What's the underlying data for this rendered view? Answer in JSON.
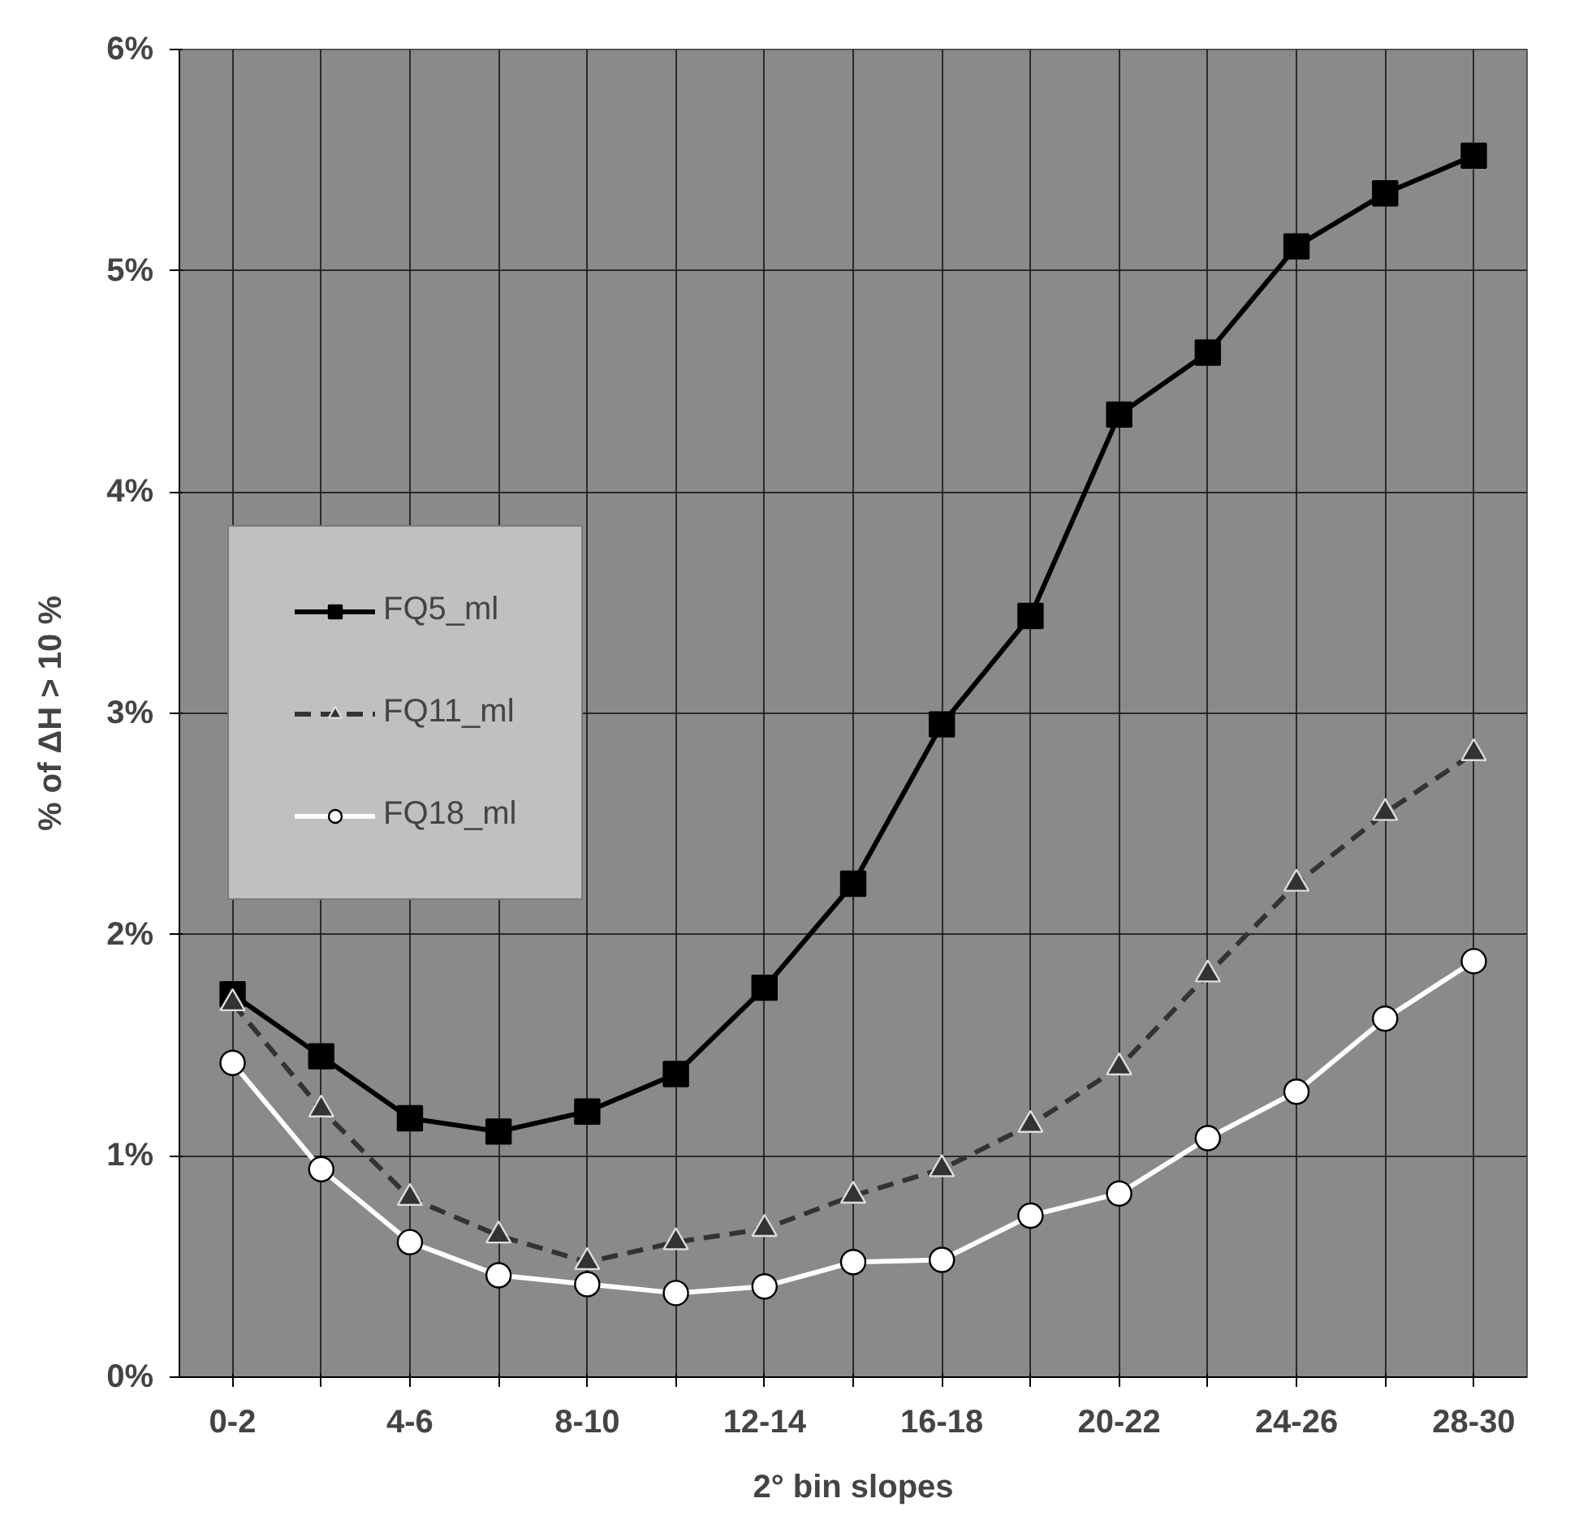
{
  "chart_data": {
    "type": "line",
    "xlabel": "2° bin slopes",
    "ylabel": "% of ΔH > 10 %",
    "categories": [
      "0-2",
      null,
      "4-6",
      null,
      "8-10",
      null,
      "12-14",
      null,
      "16-18",
      null,
      "20-22",
      null,
      "24-26",
      null,
      "28-30"
    ],
    "series": [
      {
        "name": "FQ5_ml",
        "color": "#000000",
        "marker": "square",
        "line_style": "solid",
        "values": [
          1.73,
          1.45,
          1.17,
          1.11,
          1.2,
          1.37,
          1.76,
          2.23,
          2.95,
          3.44,
          4.35,
          4.63,
          5.11,
          5.35,
          5.52
        ]
      },
      {
        "name": "FQ11_ml",
        "color": "#333333",
        "marker": "triangle",
        "line_style": "dashed",
        "values": [
          1.69,
          1.21,
          0.81,
          0.64,
          0.52,
          0.61,
          0.67,
          0.82,
          0.94,
          1.14,
          1.4,
          1.82,
          2.23,
          2.55,
          2.82
        ]
      },
      {
        "name": "FQ18_ml",
        "color": "#ffffff",
        "marker": "circle",
        "line_style": "solid",
        "values": [
          1.42,
          0.94,
          0.61,
          0.46,
          0.42,
          0.38,
          0.41,
          0.52,
          0.53,
          0.73,
          0.83,
          1.08,
          1.29,
          1.62,
          1.88
        ]
      }
    ],
    "ylim": [
      0,
      6
    ],
    "yticks": [
      {
        "value": 0,
        "label": "0%"
      },
      {
        "value": 1,
        "label": "1%"
      },
      {
        "value": 2,
        "label": "2%"
      },
      {
        "value": 3,
        "label": "3%"
      },
      {
        "value": 4,
        "label": "4%"
      },
      {
        "value": 5,
        "label": "5%"
      },
      {
        "value": 6,
        "label": "6%"
      }
    ],
    "grid": true,
    "legend": "left"
  }
}
